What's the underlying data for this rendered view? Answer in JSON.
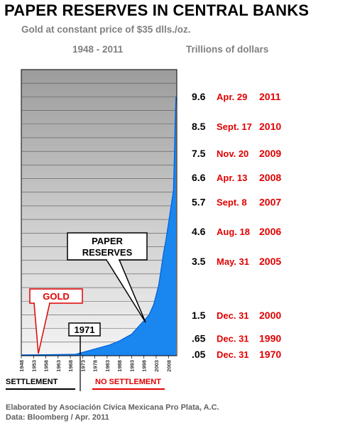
{
  "header": {
    "title": "PAPER RESERVES IN CENTRAL BANKS",
    "subtitle": "Gold at constant price of $35 dlls./oz.",
    "period": "1948 - 2011",
    "units": "Trillions of dollars"
  },
  "chart_data": {
    "type": "area",
    "x_ticks": [
      "1948",
      "1953",
      "1958",
      "1963",
      "1968",
      "1973",
      "1978",
      "1983",
      "1988",
      "1993",
      "1998",
      "2003",
      "2008"
    ],
    "xlim": [
      1948,
      2011.4
    ],
    "ylim": [
      0,
      10.6
    ],
    "grid": true,
    "series_color": "#1a86f0",
    "paper_reserves": [
      {
        "year": 1948,
        "value": 0.03
      },
      {
        "year": 1960,
        "value": 0.04
      },
      {
        "year": 1968,
        "value": 0.05
      },
      {
        "year": 1970,
        "value": 0.05
      },
      {
        "year": 1972,
        "value": 0.1
      },
      {
        "year": 1976,
        "value": 0.2
      },
      {
        "year": 1980,
        "value": 0.3
      },
      {
        "year": 1984,
        "value": 0.4
      },
      {
        "year": 1988,
        "value": 0.55
      },
      {
        "year": 1990,
        "value": 0.65
      },
      {
        "year": 1993,
        "value": 0.8
      },
      {
        "year": 1996,
        "value": 1.1
      },
      {
        "year": 1998,
        "value": 1.3
      },
      {
        "year": 2000,
        "value": 1.5
      },
      {
        "year": 2002,
        "value": 1.9
      },
      {
        "year": 2004,
        "value": 2.6
      },
      {
        "year": 2005,
        "value": 3.2
      },
      {
        "year": 2006,
        "value": 3.8
      },
      {
        "year": 2007,
        "value": 4.3
      },
      {
        "year": 2008,
        "value": 4.9
      },
      {
        "year": 2009,
        "value": 5.5
      },
      {
        "year": 2010,
        "value": 6.1
      },
      {
        "year": 2010.4,
        "value": 7.3
      },
      {
        "year": 2010.8,
        "value": 8.9
      },
      {
        "year": 2011.1,
        "value": 9.6
      }
    ],
    "reserve_points": [
      {
        "value": 9.6,
        "value_label": "9.6",
        "date": "Apr. 29",
        "year": "2011"
      },
      {
        "value": 8.5,
        "value_label": "8.5",
        "date": "Sept. 17",
        "year": "2010"
      },
      {
        "value": 7.5,
        "value_label": "7.5",
        "date": "Nov. 20",
        "year": "2009"
      },
      {
        "value": 6.6,
        "value_label": "6.6",
        "date": "Apr. 13",
        "year": "2008"
      },
      {
        "value": 5.7,
        "value_label": "5.7",
        "date": "Sept. 8",
        "year": "2007"
      },
      {
        "value": 4.6,
        "value_label": "4.6",
        "date": "Aug. 18",
        "year": "2006"
      },
      {
        "value": 3.5,
        "value_label": "3.5",
        "date": "May. 31",
        "year": "2005"
      },
      {
        "value": 1.5,
        "value_label": "1.5",
        "date": "Dec. 31",
        "year": "2000"
      },
      {
        "value": 0.65,
        "value_label": ".65",
        "date": "Dec. 31",
        "year": "1990"
      },
      {
        "value": 0.05,
        "value_label": ".05",
        "date": "Dec. 31",
        "year": "1970"
      }
    ],
    "annotations": {
      "paper_reserves": "PAPER\nRESERVES",
      "gold": "GOLD",
      "year_1971": "1971",
      "settlement": "SETTLEMENT",
      "no_settlement": "NO SETTLEMENT"
    }
  },
  "footer": {
    "credit": "Elaborated by Asociación Cívica Mexicana Pro Plata, A.C.",
    "source": "Data: Bloomberg / Apr. 2011"
  }
}
